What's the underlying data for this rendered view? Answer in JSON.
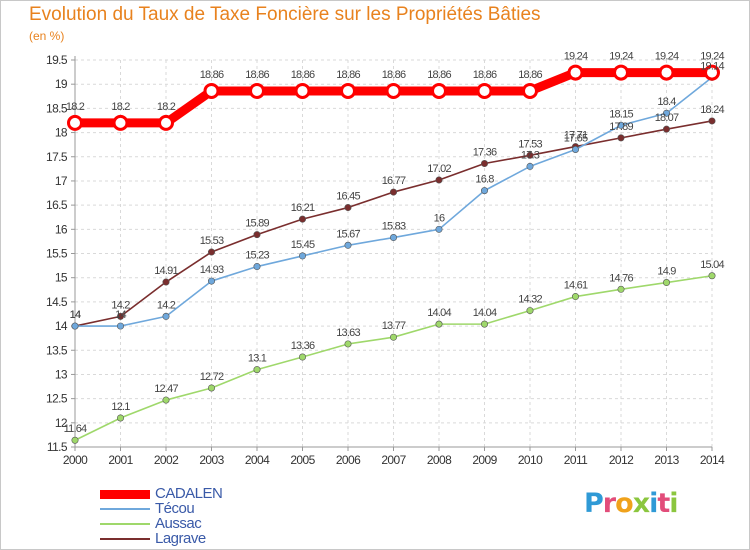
{
  "title": "Evolution du Taux de Taxe Foncière sur les Propriétés Bâties",
  "unit": "(en %)",
  "logo": {
    "letters": [
      {
        "ch": "P",
        "color": "#2f9ad6"
      },
      {
        "ch": "r",
        "color": "#e24d7a"
      },
      {
        "ch": "o",
        "color": "#f0a21b"
      },
      {
        "ch": "x",
        "color": "#8bc63e"
      },
      {
        "ch": "i",
        "color": "#2f9ad6"
      },
      {
        "ch": "t",
        "color": "#e24d7a"
      },
      {
        "ch": "i",
        "color": "#8bc63e"
      }
    ]
  },
  "colors": {
    "grid": "#d9d9d9",
    "axis": "#999999",
    "tick_text": "#333333",
    "label_text": "#444444",
    "title": "#e8821e",
    "legend_text": "#3a5aa8"
  },
  "chart_data": {
    "type": "line",
    "title": "Evolution du Taux de Taxe Foncière sur les Propriétés Bâties",
    "ylabel": "(en %)",
    "xlabel": "",
    "categories": [
      "2000",
      "2001",
      "2002",
      "2003",
      "2004",
      "2005",
      "2006",
      "2007",
      "2008",
      "2009",
      "2010",
      "2011",
      "2012",
      "2013",
      "2014"
    ],
    "yticks": [
      "11.5",
      "12",
      "12.5",
      "13",
      "13.5",
      "14",
      "14.5",
      "15",
      "15.5",
      "16",
      "16.5",
      "17",
      "17.5",
      "18",
      "18.5",
      "19",
      "19.5"
    ],
    "ylim": [
      11.5,
      19.5
    ],
    "grid": true,
    "legend_position": "bottom-left",
    "series": [
      {
        "name": "CADALEN",
        "color": "#ff0000",
        "values": [
          18.2,
          18.2,
          18.2,
          18.86,
          18.86,
          18.86,
          18.86,
          18.86,
          18.86,
          18.86,
          18.86,
          19.24,
          19.24,
          19.24,
          19.24
        ],
        "labels": [
          "18.2",
          "18.2",
          "18.2",
          "18.86",
          "18.86",
          "18.86",
          "18.86",
          "18.86",
          "18.86",
          "18.86",
          "18.86",
          "19.24",
          "19.24",
          "19.24",
          "19.24"
        ]
      },
      {
        "name": "Técou",
        "color": "#6fa8dc",
        "values": [
          14,
          14,
          14.2,
          14.93,
          15.23,
          15.45,
          15.67,
          15.83,
          16,
          16.8,
          17.3,
          17.65,
          18.15,
          18.4,
          19.14
        ],
        "labels": [
          "14",
          "14",
          "14.2",
          "14.93",
          "15.23",
          "15.45",
          "15.67",
          "15.83",
          "16",
          "16.8",
          "17.3",
          "17.65",
          "18.15",
          "18.4",
          "19.14"
        ]
      },
      {
        "name": "Aussac",
        "color": "#9fd86b",
        "values": [
          11.64,
          12.1,
          12.47,
          12.72,
          13.1,
          13.36,
          13.63,
          13.77,
          14.04,
          14.04,
          14.32,
          14.61,
          14.76,
          14.9,
          15.04
        ],
        "labels": [
          "11.64",
          "12.1",
          "12.47",
          "12.72",
          "13.1",
          "13.36",
          "13.63",
          "13.77",
          "14.04",
          "14.04",
          "14.32",
          "14.61",
          "14.76",
          "14.9",
          "15.04"
        ]
      },
      {
        "name": "Lagrave",
        "color": "#7a2e2e",
        "values": [
          14,
          14.2,
          14.91,
          15.53,
          15.89,
          16.21,
          16.45,
          16.77,
          17.02,
          17.36,
          17.53,
          17.71,
          17.89,
          18.07,
          18.24
        ],
        "labels": [
          "14",
          "14.2",
          "14.91",
          "15.53",
          "15.89",
          "16.21",
          "16.45",
          "16.77",
          "17.02",
          "17.36",
          "17.53",
          "17.71",
          "17.89",
          "18.07",
          "18.24"
        ]
      }
    ]
  }
}
